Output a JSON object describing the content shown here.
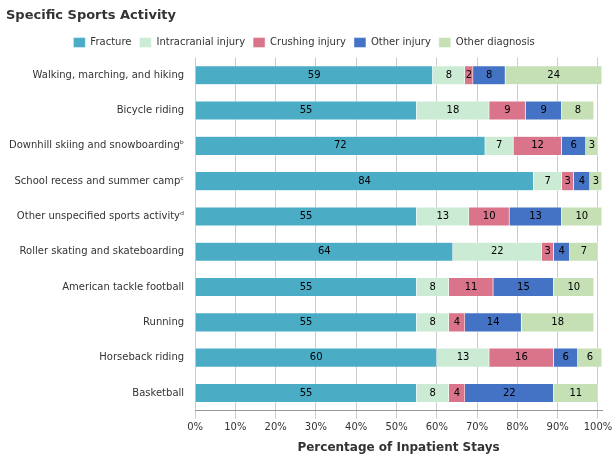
{
  "chart_data": {
    "type": "bar",
    "orientation": "horizontal",
    "stacked": true,
    "title": "Specific Sports Activity",
    "xlabel": "Percentage of Inpatient Stays",
    "categories": [
      "Walking, marching, and hiking",
      "Bicycle riding",
      "Downhill skiing and snowboardingᵇ",
      "School recess and summer campᶜ",
      "Other unspecified sports activityᵈ",
      "Roller skating and skateboarding",
      "American tackle football",
      "Running",
      "Horseback riding",
      "Basketball"
    ],
    "series": [
      {
        "name": "Fracture",
        "color": "#4BACC6",
        "values": [
          59,
          55,
          72,
          84,
          55,
          64,
          55,
          55,
          60,
          55
        ]
      },
      {
        "name": "Intracranial injury",
        "color": "#CCEBD4",
        "values": [
          8,
          18,
          7,
          7,
          13,
          22,
          8,
          8,
          13,
          8
        ]
      },
      {
        "name": "Crushing injury",
        "color": "#D9748A",
        "values": [
          2,
          9,
          12,
          3,
          10,
          3,
          11,
          4,
          16,
          4
        ]
      },
      {
        "name": "Other injury",
        "color": "#4472C4",
        "values": [
          8,
          9,
          6,
          4,
          13,
          4,
          15,
          14,
          6,
          22
        ]
      },
      {
        "name": "Other diagnosis",
        "color": "#C5E0B4",
        "values": [
          24,
          8,
          3,
          3,
          10,
          7,
          10,
          18,
          6,
          11
        ]
      }
    ],
    "xlim": [
      0,
      101
    ],
    "xticks": [
      {
        "value": 0,
        "label": "0%"
      },
      {
        "value": 10,
        "label": "10%"
      },
      {
        "value": 20,
        "label": "20%"
      },
      {
        "value": 30,
        "label": "30%"
      },
      {
        "value": 40,
        "label": "40%"
      },
      {
        "value": 50,
        "label": "50%"
      },
      {
        "value": 60,
        "label": "60%"
      },
      {
        "value": 70,
        "label": "70%"
      },
      {
        "value": 80,
        "label": "80%"
      },
      {
        "value": 90,
        "label": "90%"
      },
      {
        "value": 100,
        "label": "100%"
      }
    ],
    "grid": true,
    "legend": "top",
    "data_labels": true
  }
}
